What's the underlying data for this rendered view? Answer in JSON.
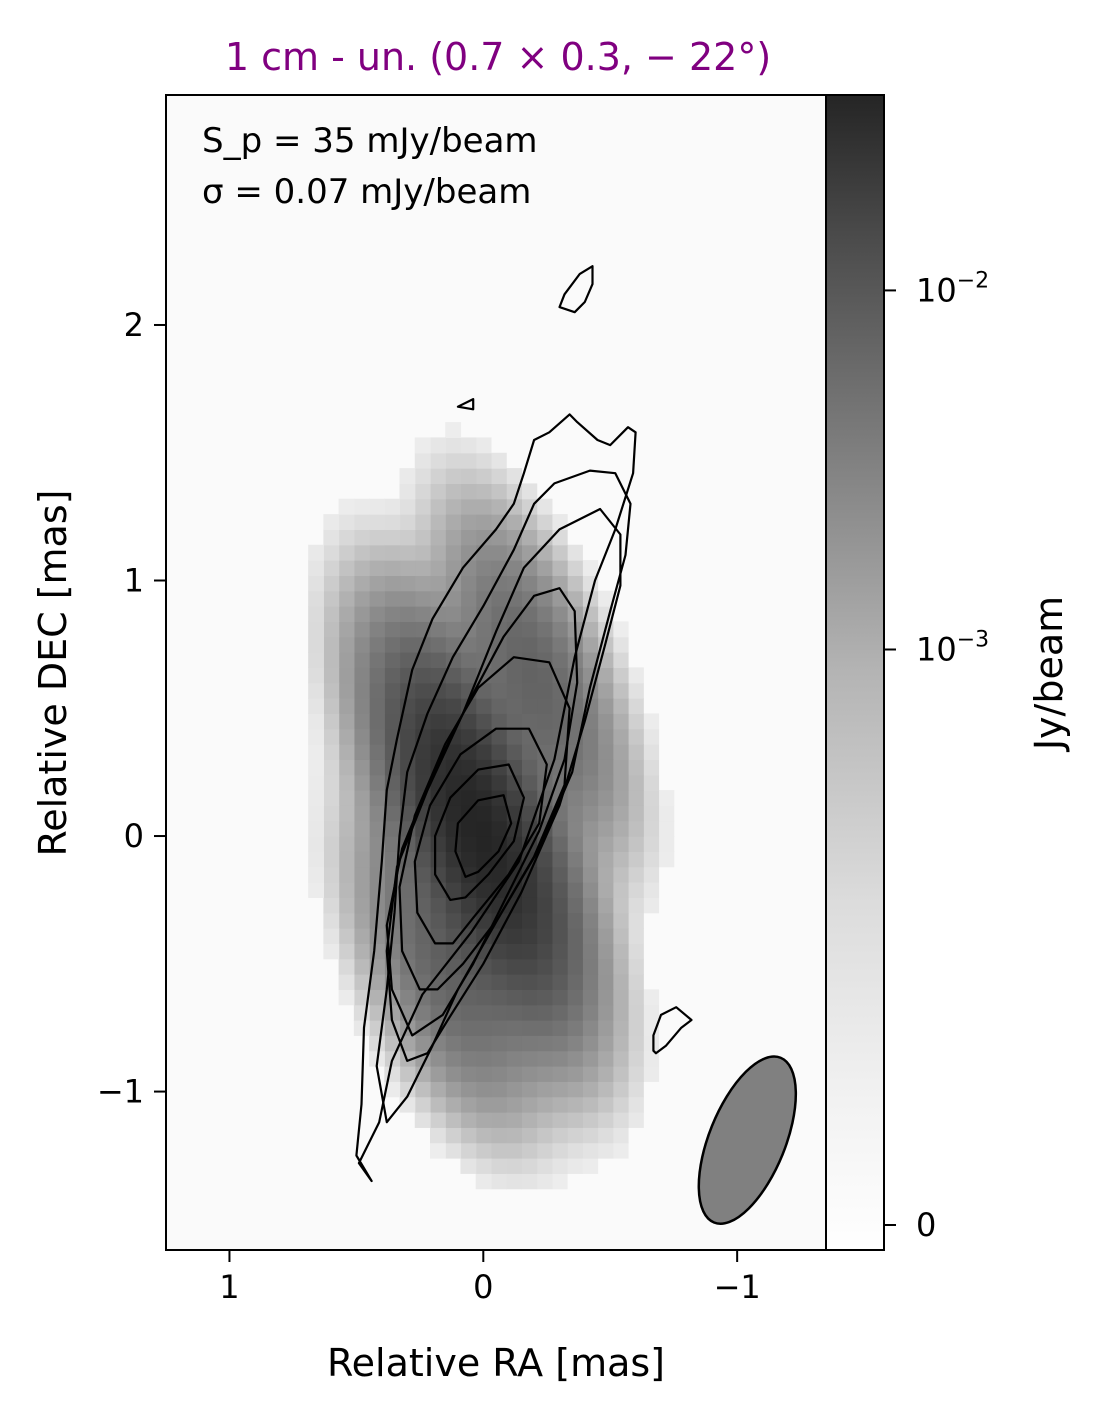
{
  "chart_data": {
    "type": "heatmap",
    "title": "1 cm - un. (0.7 × 0.3, − 22°)",
    "title_color": "#800080",
    "annotations": {
      "peak_line": "S_p = 35 mJy/beam",
      "sigma_line": "σ = 0.07 mJy/beam"
    },
    "xlabel": "Relative RA [mas]",
    "ylabel": "Relative DEC [mas]",
    "xlim": [
      1.25,
      -1.35
    ],
    "ylim": [
      -1.62,
      2.9
    ],
    "x_ticks": [
      {
        "value": 1,
        "label": "1"
      },
      {
        "value": 0,
        "label": "0"
      },
      {
        "value": -1,
        "label": "−1"
      }
    ],
    "y_ticks": [
      {
        "value": 2,
        "label": "2"
      },
      {
        "value": 1,
        "label": "1"
      },
      {
        "value": 0,
        "label": "0"
      },
      {
        "value": -1,
        "label": "−1"
      }
    ],
    "grid": false,
    "colormap": "greys",
    "colorbar": {
      "label": "Jy/beam",
      "scale": "symlog",
      "ticks": [
        {
          "label": "0",
          "value": 0
        },
        {
          "label": "10",
          "exponent": "−3",
          "value": 0.001
        },
        {
          "label": "10",
          "exponent": "−2",
          "value": 0.01
        }
      ],
      "max": 0.035
    },
    "beam": {
      "major_mas": 0.7,
      "minor_mas": 0.3,
      "pa_deg": -22,
      "center": [
        -1.04,
        -1.19
      ],
      "fill": "#808080"
    },
    "source_components": [
      {
        "x": 0.02,
        "y": 0.02,
        "peak": 0.035,
        "sigma_major": 0.36,
        "sigma_minor": 0.13,
        "pa_deg": -22
      },
      {
        "x": -0.2,
        "y": 0.62,
        "peak": 0.0042,
        "sigma_major": 0.32,
        "sigma_minor": 0.12,
        "pa_deg": -22
      },
      {
        "x": 0.15,
        "y": -0.5,
        "peak": 0.004,
        "sigma_major": 0.3,
        "sigma_minor": 0.13,
        "pa_deg": -22
      }
    ],
    "contours": [
      {
        "level": 1,
        "points": [
          [
            0.44,
            -1.35
          ],
          [
            0.49,
            -1.28
          ],
          [
            0.41,
            -1.12
          ],
          [
            0.36,
            -0.88
          ],
          [
            0.24,
            -0.62
          ],
          [
            0.05,
            -0.38
          ],
          [
            -0.14,
            -0.1
          ],
          [
            -0.28,
            0.3
          ],
          [
            -0.36,
            0.7
          ],
          [
            -0.44,
            1.0
          ],
          [
            -0.52,
            1.2
          ],
          [
            -0.59,
            1.42
          ],
          [
            -0.6,
            1.58
          ],
          [
            -0.57,
            1.6
          ],
          [
            -0.5,
            1.53
          ],
          [
            -0.45,
            1.55
          ],
          [
            -0.37,
            1.62
          ],
          [
            -0.34,
            1.65
          ],
          [
            -0.26,
            1.58
          ],
          [
            -0.2,
            1.55
          ],
          [
            -0.16,
            1.42
          ],
          [
            -0.12,
            1.3
          ],
          [
            -0.05,
            1.2
          ],
          [
            0.08,
            1.05
          ],
          [
            0.2,
            0.85
          ],
          [
            0.28,
            0.65
          ],
          [
            0.34,
            0.38
          ],
          [
            0.38,
            0.18
          ],
          [
            0.4,
            -0.1
          ],
          [
            0.43,
            -0.45
          ],
          [
            0.47,
            -0.75
          ],
          [
            0.48,
            -1.05
          ],
          [
            0.5,
            -1.25
          ]
        ]
      },
      {
        "level": 2,
        "points": [
          [
            0.38,
            -1.12
          ],
          [
            0.42,
            -0.9
          ],
          [
            0.38,
            -0.6
          ],
          [
            0.35,
            -0.3
          ],
          [
            0.33,
            0.0
          ],
          [
            0.3,
            0.25
          ],
          [
            0.22,
            0.48
          ],
          [
            0.12,
            0.7
          ],
          [
            0.0,
            0.9
          ],
          [
            -0.12,
            1.12
          ],
          [
            -0.2,
            1.3
          ],
          [
            -0.28,
            1.38
          ],
          [
            -0.42,
            1.43
          ],
          [
            -0.52,
            1.42
          ],
          [
            -0.58,
            1.3
          ],
          [
            -0.56,
            1.1
          ],
          [
            -0.5,
            0.88
          ],
          [
            -0.42,
            0.58
          ],
          [
            -0.35,
            0.25
          ],
          [
            -0.22,
            -0.05
          ],
          [
            -0.06,
            -0.32
          ],
          [
            0.1,
            -0.6
          ],
          [
            0.2,
            -0.82
          ],
          [
            0.3,
            -1.02
          ]
        ]
      },
      {
        "level": 3,
        "points": [
          [
            0.3,
            -0.88
          ],
          [
            0.36,
            -0.72
          ],
          [
            0.38,
            -0.45
          ],
          [
            0.34,
            -0.12
          ],
          [
            0.22,
            0.18
          ],
          [
            0.08,
            0.48
          ],
          [
            -0.05,
            0.8
          ],
          [
            -0.16,
            1.05
          ],
          [
            -0.3,
            1.2
          ],
          [
            -0.46,
            1.28
          ],
          [
            -0.54,
            1.18
          ],
          [
            -0.54,
            0.98
          ],
          [
            -0.48,
            0.75
          ],
          [
            -0.4,
            0.45
          ],
          [
            -0.3,
            0.12
          ],
          [
            -0.15,
            -0.22
          ],
          [
            0.0,
            -0.5
          ],
          [
            0.14,
            -0.72
          ],
          [
            0.22,
            -0.85
          ]
        ]
      },
      {
        "level": 4,
        "points": [
          [
            0.28,
            -0.78
          ],
          [
            0.36,
            -0.6
          ],
          [
            0.38,
            -0.35
          ],
          [
            0.32,
            -0.05
          ],
          [
            0.2,
            0.24
          ],
          [
            0.06,
            0.52
          ],
          [
            -0.08,
            0.78
          ],
          [
            -0.2,
            0.94
          ],
          [
            -0.3,
            0.97
          ],
          [
            -0.36,
            0.88
          ],
          [
            -0.37,
            0.6
          ],
          [
            -0.32,
            0.3
          ],
          [
            -0.22,
            0.02
          ],
          [
            -0.08,
            -0.26
          ],
          [
            0.04,
            -0.5
          ],
          [
            0.16,
            -0.7
          ]
        ]
      },
      {
        "level": 5,
        "points": [
          [
            0.25,
            -0.6
          ],
          [
            0.32,
            -0.45
          ],
          [
            0.33,
            -0.2
          ],
          [
            0.27,
            0.08
          ],
          [
            0.15,
            0.36
          ],
          [
            0.02,
            0.58
          ],
          [
            -0.12,
            0.7
          ],
          [
            -0.26,
            0.68
          ],
          [
            -0.34,
            0.5
          ],
          [
            -0.32,
            0.2
          ],
          [
            -0.2,
            -0.08
          ],
          [
            -0.06,
            -0.32
          ],
          [
            0.08,
            -0.5
          ],
          [
            0.18,
            -0.6
          ]
        ]
      },
      {
        "level": 6,
        "points": [
          [
            0.19,
            -0.42
          ],
          [
            0.26,
            -0.3
          ],
          [
            0.27,
            -0.1
          ],
          [
            0.21,
            0.12
          ],
          [
            0.09,
            0.32
          ],
          [
            -0.05,
            0.42
          ],
          [
            -0.18,
            0.42
          ],
          [
            -0.25,
            0.28
          ],
          [
            -0.22,
            0.05
          ],
          [
            -0.1,
            -0.15
          ],
          [
            0.04,
            -0.32
          ],
          [
            0.12,
            -0.42
          ]
        ]
      },
      {
        "level": 7,
        "points": [
          [
            0.13,
            -0.25
          ],
          [
            0.19,
            -0.15
          ],
          [
            0.19,
            0.0
          ],
          [
            0.13,
            0.15
          ],
          [
            0.02,
            0.26
          ],
          [
            -0.1,
            0.28
          ],
          [
            -0.16,
            0.15
          ],
          [
            -0.12,
            -0.02
          ],
          [
            -0.02,
            -0.15
          ],
          [
            0.07,
            -0.24
          ]
        ]
      },
      {
        "level": 8,
        "points": [
          [
            0.07,
            -0.16
          ],
          [
            0.11,
            -0.06
          ],
          [
            0.1,
            0.05
          ],
          [
            0.02,
            0.14
          ],
          [
            -0.08,
            0.16
          ],
          [
            -0.11,
            0.05
          ],
          [
            -0.06,
            -0.06
          ],
          [
            0.02,
            -0.14
          ]
        ]
      },
      {
        "level": 1,
        "points": [
          [
            -0.32,
            2.12
          ],
          [
            -0.38,
            2.2
          ],
          [
            -0.43,
            2.23
          ],
          [
            -0.43,
            2.16
          ],
          [
            -0.4,
            2.09
          ],
          [
            -0.36,
            2.05
          ],
          [
            -0.3,
            2.07
          ]
        ]
      },
      {
        "level": 1,
        "points": [
          [
            0.1,
            1.68
          ],
          [
            0.04,
            1.71
          ],
          [
            0.04,
            1.67
          ]
        ]
      },
      {
        "level": 1,
        "points": [
          [
            -0.68,
            -0.85
          ],
          [
            -0.72,
            -0.82
          ],
          [
            -0.78,
            -0.75
          ],
          [
            -0.82,
            -0.72
          ],
          [
            -0.76,
            -0.67
          ],
          [
            -0.7,
            -0.7
          ],
          [
            -0.67,
            -0.78
          ],
          [
            -0.67,
            -0.84
          ]
        ]
      }
    ]
  }
}
